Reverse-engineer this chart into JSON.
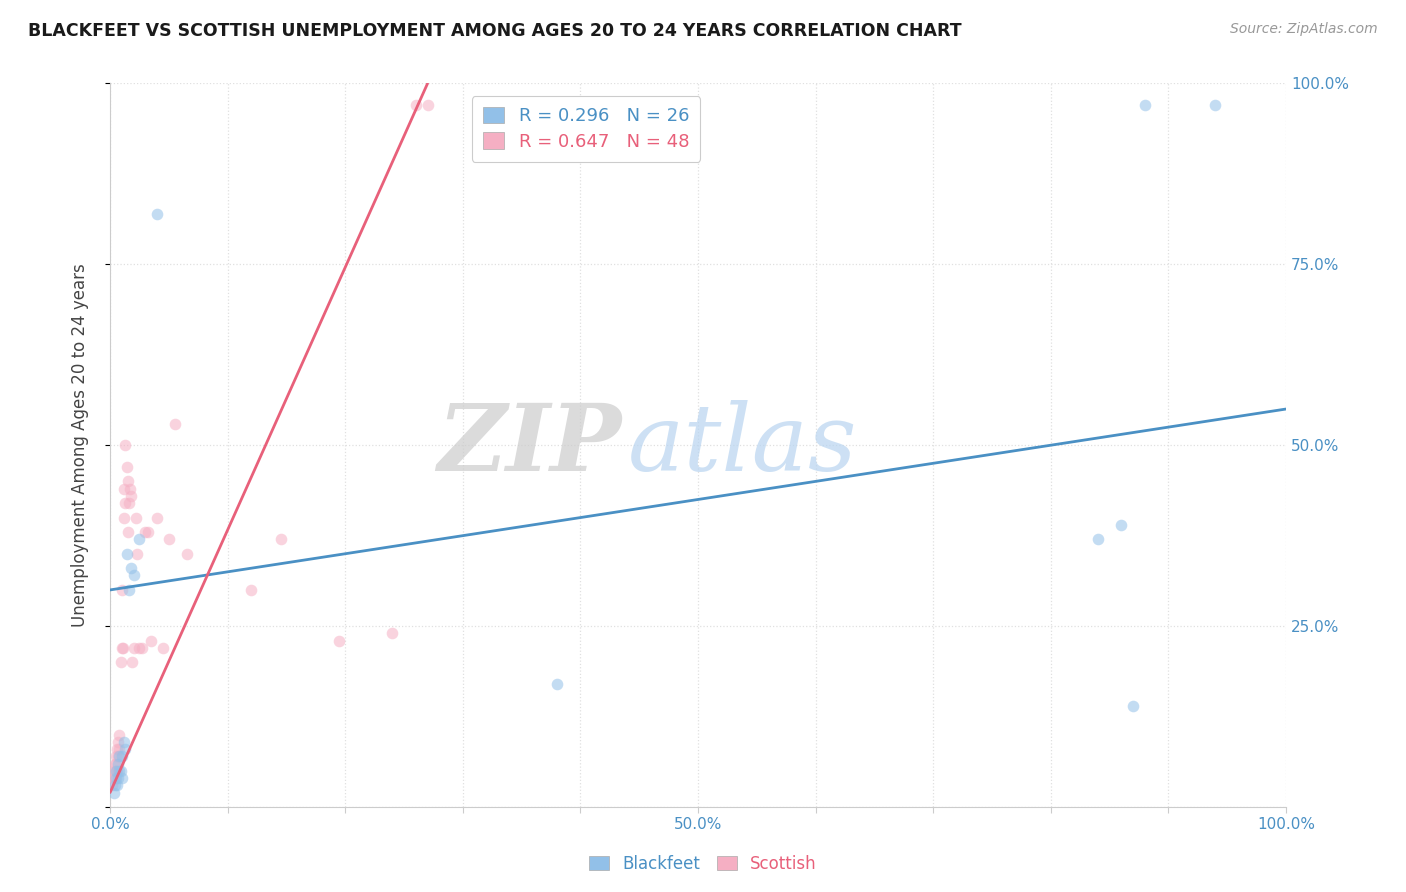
{
  "title": "BLACKFEET VS SCOTTISH UNEMPLOYMENT AMONG AGES 20 TO 24 YEARS CORRELATION CHART",
  "source": "Source: ZipAtlas.com",
  "ylabel": "Unemployment Among Ages 20 to 24 years",
  "xlim": [
    0,
    1.0
  ],
  "ylim": [
    0,
    1.0
  ],
  "xtick_positions": [
    0.0,
    0.1,
    0.2,
    0.3,
    0.4,
    0.5,
    0.6,
    0.7,
    0.8,
    0.9,
    1.0
  ],
  "ytick_positions": [
    0.0,
    0.25,
    0.5,
    0.75,
    1.0
  ],
  "xticklabels": [
    "0.0%",
    "",
    "",
    "",
    "",
    "50.0%",
    "",
    "",
    "",
    "",
    "100.0%"
  ],
  "yticklabels": [
    "",
    "25.0%",
    "50.0%",
    "75.0%",
    "100.0%"
  ],
  "blackfeet_color": "#92c0e8",
  "scottish_color": "#f5afc3",
  "trendline_blue": "#4a90c4",
  "trendline_pink": "#e8607a",
  "legend_R_blackfeet": "R = 0.296",
  "legend_N_blackfeet": "N = 26",
  "legend_R_scottish": "R = 0.647",
  "legend_N_scottish": "N = 48",
  "blackfeet_x": [
    0.003,
    0.004,
    0.005,
    0.005,
    0.006,
    0.007,
    0.007,
    0.008,
    0.008,
    0.009,
    0.01,
    0.01,
    0.012,
    0.013,
    0.014,
    0.016,
    0.018,
    0.02,
    0.025,
    0.04,
    0.38,
    0.84,
    0.86,
    0.87,
    0.88,
    0.94
  ],
  "blackfeet_y": [
    0.02,
    0.03,
    0.04,
    0.05,
    0.03,
    0.04,
    0.06,
    0.05,
    0.07,
    0.05,
    0.04,
    0.07,
    0.09,
    0.08,
    0.35,
    0.3,
    0.33,
    0.32,
    0.37,
    0.82,
    0.17,
    0.37,
    0.39,
    0.14,
    0.97,
    0.97
  ],
  "scottish_x": [
    0.002,
    0.003,
    0.003,
    0.004,
    0.004,
    0.005,
    0.005,
    0.005,
    0.006,
    0.006,
    0.007,
    0.007,
    0.008,
    0.008,
    0.009,
    0.01,
    0.01,
    0.011,
    0.012,
    0.012,
    0.013,
    0.013,
    0.014,
    0.015,
    0.015,
    0.016,
    0.017,
    0.018,
    0.019,
    0.02,
    0.022,
    0.023,
    0.025,
    0.027,
    0.03,
    0.032,
    0.035,
    0.04,
    0.045,
    0.05,
    0.055,
    0.065,
    0.12,
    0.145,
    0.195,
    0.24,
    0.26,
    0.27
  ],
  "scottish_y": [
    0.03,
    0.04,
    0.05,
    0.04,
    0.06,
    0.05,
    0.06,
    0.07,
    0.05,
    0.08,
    0.07,
    0.09,
    0.08,
    0.1,
    0.2,
    0.22,
    0.3,
    0.22,
    0.4,
    0.44,
    0.42,
    0.5,
    0.47,
    0.45,
    0.38,
    0.42,
    0.44,
    0.43,
    0.2,
    0.22,
    0.4,
    0.35,
    0.22,
    0.22,
    0.38,
    0.38,
    0.23,
    0.4,
    0.22,
    0.37,
    0.53,
    0.35,
    0.3,
    0.37,
    0.23,
    0.24,
    0.97,
    0.97
  ],
  "watermark_zip_color": "#c8c8c8",
  "watermark_atlas_color": "#b8d4f0",
  "background_color": "#ffffff",
  "grid_color": "#e0e0e0",
  "marker_size": 70,
  "marker_alpha": 0.55,
  "blue_trend_x0": 0.0,
  "blue_trend_y0": 0.3,
  "blue_trend_x1": 1.0,
  "blue_trend_y1": 0.55,
  "pink_trend_x0": 0.0,
  "pink_trend_y0": 0.02,
  "pink_trend_x1": 0.27,
  "pink_trend_y1": 1.0
}
